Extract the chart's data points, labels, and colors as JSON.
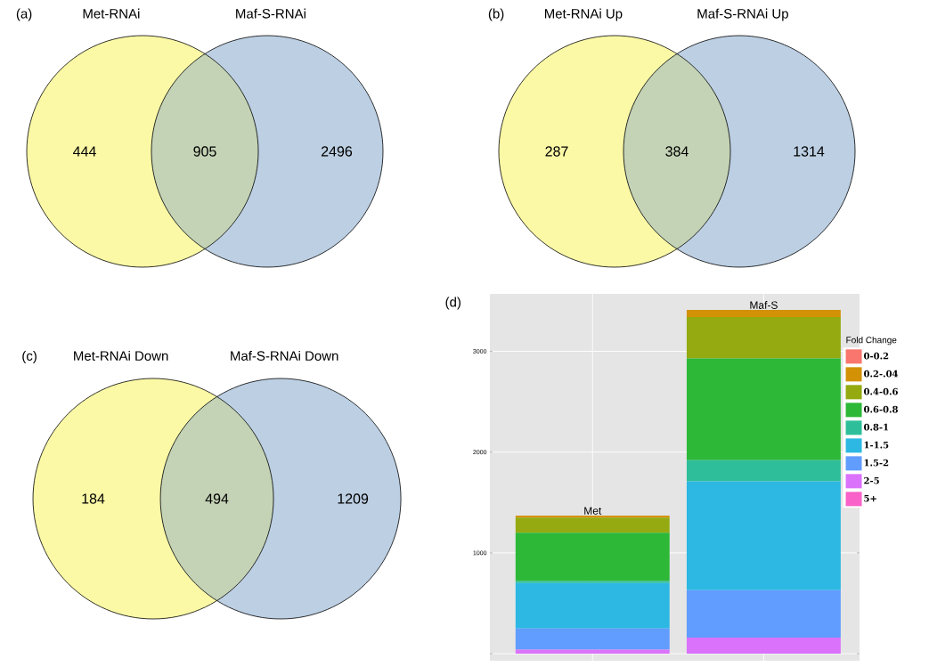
{
  "chart_data": [
    {
      "type": "other",
      "title": "(a)",
      "categories": [
        "Met-RNAi",
        null,
        "Maf-S-RNAi"
      ],
      "values": [
        444,
        905,
        2496
      ],
      "data_labels": true,
      "colors": [
        "#fbf9a6",
        "#c4d3b5",
        "#bccfe3"
      ]
    },
    {
      "type": "other",
      "title": "(b)",
      "categories": [
        "Met-RNAi Up",
        null,
        "Maf-S-RNAi Up"
      ],
      "values": [
        287,
        384,
        1314
      ],
      "data_labels": true,
      "colors": [
        "#fbf9a6",
        "#c4d3b5",
        "#bccfe3"
      ]
    },
    {
      "type": "other",
      "title": "(c)",
      "categories": [
        "Met-RNAi Down",
        null,
        "Maf-S-RNAi Down"
      ],
      "values": [
        184,
        494,
        1209
      ],
      "data_labels": true,
      "colors": [
        "#fbf9a6",
        "#c4d3b5",
        "#bccfe3"
      ]
    },
    {
      "type": "bar",
      "title": "(d)",
      "stacked": true,
      "categories": [
        "Met",
        "Maf-S"
      ],
      "legend_title": "Fold Change",
      "legend": "right",
      "grid": true,
      "tick_labels": "y",
      "ylim": [
        -70,
        3570
      ],
      "yticks": [
        {
          "value": 0,
          "label": null
        },
        1000,
        2000,
        3000
      ],
      "series": [
        {
          "name": "5+",
          "color": "#f962c8",
          "values": [
            0,
            0
          ]
        },
        {
          "name": "2-5",
          "color": "#db72fb",
          "values": [
            40,
            160
          ]
        },
        {
          "name": "1.5-2",
          "color": "#619cff",
          "values": [
            210,
            470
          ]
        },
        {
          "name": "1-1.5",
          "color": "#2cb8e3",
          "values": [
            450,
            1080
          ]
        },
        {
          "name": "0.8-1",
          "color": "#2ebf9a",
          "values": [
            20,
            210
          ]
        },
        {
          "name": "0.6-0.8",
          "color": "#2db838",
          "values": [
            480,
            1010
          ]
        },
        {
          "name": "0.4-0.6",
          "color": "#94aa10",
          "values": [
            150,
            410
          ]
        },
        {
          "name": "0.2-.04",
          "color": "#d39106",
          "values": [
            20,
            70
          ]
        },
        {
          "name": "0-0.2",
          "color": "#f8766d",
          "values": [
            0,
            0
          ]
        }
      ]
    }
  ]
}
